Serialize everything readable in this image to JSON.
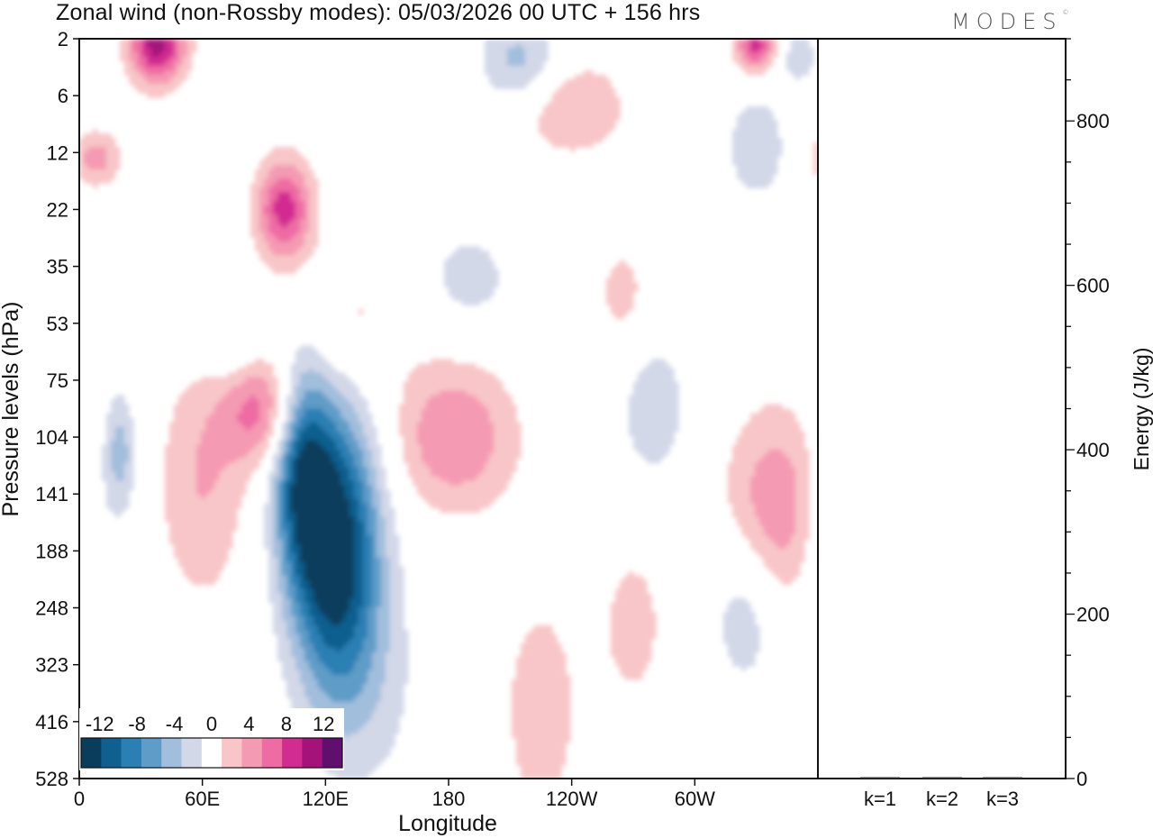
{
  "header": {
    "title": "Zonal wind (non-Rossby modes):  05/03/2026  00 UTC  + 156 hrs",
    "logo": "MODES",
    "logo_mark": "©"
  },
  "chart_data": [
    {
      "type": "heatmap",
      "title": "Zonal wind (non-Rossby modes):  05/03/2026  00 UTC  + 156 hrs",
      "xlabel": "Longitude",
      "ylabel": "Pressure levels (hPa)",
      "x_ticks": [
        "0",
        "60E",
        "120E",
        "180",
        "120W",
        "60W"
      ],
      "x_tick_degrees": [
        0,
        60,
        120,
        180,
        240,
        300
      ],
      "xlim": [
        0,
        360
      ],
      "y_ticks": [
        "2",
        "6",
        "12",
        "22",
        "35",
        "53",
        "75",
        "104",
        "141",
        "188",
        "248",
        "323",
        "416",
        "528"
      ],
      "colorbar": {
        "labels": [
          "-12",
          "-8",
          "-4",
          "0",
          "4",
          "8",
          "12"
        ],
        "label_values": [
          -12,
          -8,
          -4,
          0,
          4,
          8,
          12
        ],
        "levels": [
          -14,
          -12,
          -10,
          -8,
          -6,
          -4,
          -2,
          2,
          4,
          6,
          8,
          10,
          12,
          14
        ],
        "colors": [
          "#0a3d5c",
          "#0f5f8f",
          "#2a7fb3",
          "#5f9cc8",
          "#a2bedd",
          "#d3d8e8",
          "#ffffff",
          "#f8c6c8",
          "#f59ab3",
          "#ee6ca3",
          "#d22c91",
          "#a5127a",
          "#600f6e"
        ]
      },
      "features": [
        {
          "lon": 125,
          "level": 9.0,
          "value": -14,
          "lon_width": 22,
          "level_width": 2.6
        },
        {
          "lon": 108,
          "level": 7.4,
          "value": -9,
          "lon_width": 14,
          "level_width": 2.0
        },
        {
          "lon": 20,
          "level": 7.3,
          "value": -5,
          "lon_width": 8,
          "level_width": 1.1
        },
        {
          "lon": 215,
          "level": 0.4,
          "value": -5,
          "lon_width": 20,
          "level_width": 0.8
        },
        {
          "lon": 330,
          "level": 1.9,
          "value": -4,
          "lon_width": 14,
          "level_width": 0.9
        },
        {
          "lon": 325,
          "level": 10.0,
          "value": -4,
          "lon_width": 18,
          "level_width": 1.5
        },
        {
          "lon": 75,
          "level": 5.3,
          "value": -3,
          "lon_width": 16,
          "level_width": 0.8
        },
        {
          "lon": 190,
          "level": 4.2,
          "value": -3,
          "lon_width": 22,
          "level_width": 0.9
        },
        {
          "lon": 280,
          "level": 6.5,
          "value": -3,
          "lon_width": 20,
          "level_width": 1.6
        },
        {
          "lon": 4,
          "level": 8.8,
          "value": -3,
          "lon_width": 14,
          "level_width": 2.0
        },
        {
          "lon": 145,
          "level": 11.5,
          "value": -2,
          "lon_width": 25,
          "level_width": 2.0
        },
        {
          "lon": 350,
          "level": 0.3,
          "value": -3,
          "lon_width": 12,
          "level_width": 0.6
        },
        {
          "lon": 38,
          "level": 0.1,
          "value": 11,
          "lon_width": 14,
          "level_width": 0.7
        },
        {
          "lon": 100,
          "level": 3.0,
          "value": 9,
          "lon_width": 14,
          "level_width": 0.9
        },
        {
          "lon": 90,
          "level": 6.5,
          "value": 7,
          "lon_width": 20,
          "level_width": 1.0
        },
        {
          "lon": 183,
          "level": 7.0,
          "value": 6,
          "lon_width": 30,
          "level_width": 1.3
        },
        {
          "lon": 60,
          "level": 7.8,
          "value": 4,
          "lon_width": 22,
          "level_width": 2.2
        },
        {
          "lon": 8,
          "level": 2.1,
          "value": 5,
          "lon_width": 12,
          "level_width": 0.5
        },
        {
          "lon": 240,
          "level": 1.2,
          "value": 4,
          "lon_width": 28,
          "level_width": 0.9
        },
        {
          "lon": 330,
          "level": 0.1,
          "value": 9,
          "lon_width": 10,
          "level_width": 0.5
        },
        {
          "lon": 340,
          "level": 8.3,
          "value": 6,
          "lon_width": 26,
          "level_width": 1.8
        },
        {
          "lon": 225,
          "level": 11.8,
          "value": 3,
          "lon_width": 22,
          "level_width": 2.4
        },
        {
          "lon": 270,
          "level": 10.3,
          "value": 3,
          "lon_width": 16,
          "level_width": 1.5
        },
        {
          "lon": 130,
          "level": 5.0,
          "value": 3,
          "lon_width": 30,
          "level_width": 1.2
        },
        {
          "lon": 265,
          "level": 4.5,
          "value": 3,
          "lon_width": 14,
          "level_width": 1.0
        }
      ]
    },
    {
      "type": "bar",
      "categories": [
        "k=1",
        "k=2",
        "k=3"
      ],
      "values": [
        0.5,
        0.5,
        0.5
      ],
      "ylabel": "Energy (J/kg)",
      "ylim": [
        0,
        900
      ],
      "y_ticks": [
        "0",
        "200",
        "400",
        "600",
        "800"
      ],
      "y_tick_values": [
        0,
        200,
        400,
        600,
        800
      ]
    }
  ]
}
